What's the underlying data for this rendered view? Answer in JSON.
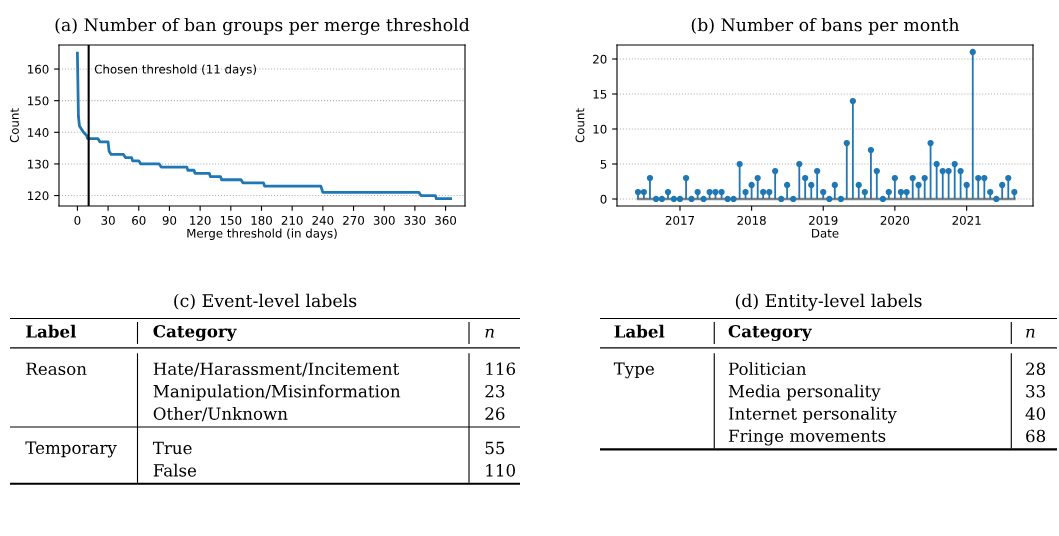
{
  "chart_data": [
    {
      "type": "line",
      "title": "(a) Number of ban groups per merge threshold",
      "xlabel": "Merge threshold (in days)",
      "ylabel": "Count",
      "x": [
        0,
        1,
        2,
        4,
        6,
        9,
        10,
        20,
        22,
        30,
        31,
        33,
        45,
        47,
        53,
        54,
        60,
        62,
        80,
        82,
        107,
        108,
        114,
        115,
        129,
        130,
        140,
        141,
        160,
        162,
        182,
        183,
        238,
        240,
        334,
        336,
        350,
        351,
        365
      ],
      "series": [
        {
          "color": "#1f77b4",
          "values": [
            165,
            145,
            142,
            141,
            140,
            139,
            138,
            138,
            137,
            137,
            134,
            133,
            133,
            132,
            132,
            131,
            131,
            130,
            130,
            129,
            129,
            128,
            128,
            127,
            127,
            126,
            126,
            125,
            125,
            124,
            124,
            123,
            123,
            121,
            121,
            120,
            120,
            119,
            119
          ]
        }
      ],
      "xlim": [
        -18,
        379
      ],
      "ylim": [
        116.7,
        167.6
      ],
      "xticks": [
        0,
        30,
        60,
        90,
        120,
        150,
        180,
        210,
        240,
        270,
        300,
        330,
        360
      ],
      "yticks": [
        120,
        130,
        140,
        150,
        160
      ],
      "ref_lines": [
        {
          "axis": "x",
          "value": 11,
          "label": "Chosen threshold (11 days)",
          "color": "#000000"
        }
      ],
      "grid": "y",
      "marker": "none",
      "line_style": "solid"
    },
    {
      "type": "lollipop",
      "title": "(b) Number of bans per month",
      "xlabel": "Date",
      "ylabel": "Count",
      "x": [
        "2016-06",
        "2016-07",
        "2016-08",
        "2016-09",
        "2016-10",
        "2016-11",
        "2016-12",
        "2017-01",
        "2017-02",
        "2017-03",
        "2017-04",
        "2017-05",
        "2017-06",
        "2017-07",
        "2017-08",
        "2017-09",
        "2017-10",
        "2017-11",
        "2017-12",
        "2018-01",
        "2018-02",
        "2018-03",
        "2018-04",
        "2018-05",
        "2018-06",
        "2018-07",
        "2018-08",
        "2018-09",
        "2018-10",
        "2018-11",
        "2018-12",
        "2019-01",
        "2019-02",
        "2019-03",
        "2019-04",
        "2019-05",
        "2019-06",
        "2019-07",
        "2019-08",
        "2019-09",
        "2019-10",
        "2019-11",
        "2019-12",
        "2020-01",
        "2020-02",
        "2020-03",
        "2020-04",
        "2020-05",
        "2020-06",
        "2020-07",
        "2020-08",
        "2020-09",
        "2020-10",
        "2020-11",
        "2020-12",
        "2021-01",
        "2021-02",
        "2021-03",
        "2021-04",
        "2021-05",
        "2021-06",
        "2021-07",
        "2021-08",
        "2021-09"
      ],
      "series": [
        {
          "color": "#1f77b4",
          "values": [
            1,
            1,
            3,
            0,
            0,
            1,
            0,
            0,
            3,
            0,
            1,
            0,
            1,
            1,
            1,
            0,
            0,
            5,
            1,
            2,
            3,
            1,
            1,
            4,
            0,
            2,
            0,
            5,
            3,
            2,
            4,
            1,
            0,
            2,
            0,
            8,
            14,
            2,
            1,
            7,
            4,
            0,
            1,
            3,
            1,
            1,
            3,
            2,
            3,
            8,
            5,
            4,
            4,
            5,
            4,
            2,
            21,
            3,
            3,
            1,
            0,
            2,
            3,
            1
          ]
        }
      ],
      "xlim": [
        "2016-02-15",
        "2021-12-05"
      ],
      "ylim": [
        -1.0,
        22.0
      ],
      "xticks": [
        {
          "value": "2017-01-01",
          "label": "2017"
        },
        {
          "value": "2018-01-01",
          "label": "2018"
        },
        {
          "value": "2019-01-01",
          "label": "2019"
        },
        {
          "value": "2020-01-01",
          "label": "2020"
        },
        {
          "value": "2021-01-01",
          "label": "2021"
        }
      ],
      "yticks": [
        0,
        5,
        10,
        15,
        20
      ],
      "grid": "y",
      "marker": "circle"
    },
    {
      "type": "other",
      "title": "(c) Event-level labels",
      "categories": [
        "Label",
        "Category",
        "n"
      ],
      "cell_labels": [
        [
          "Reason",
          "Hate/Harassment/Incitement",
          "116"
        ],
        [
          null,
          "Manipulation/Misinformation",
          "23"
        ],
        [
          null,
          "Other/Unknown",
          "26"
        ],
        [
          "Temporary",
          "True",
          "55"
        ],
        [
          null,
          "False",
          "110"
        ]
      ]
    },
    {
      "type": "other",
      "title": "(d) Entity-level labels",
      "categories": [
        "Label",
        "Category",
        "n"
      ],
      "cell_labels": [
        [
          "Type",
          "Politician",
          "28"
        ],
        [
          null,
          "Media personality",
          "33"
        ],
        [
          null,
          "Internet personality",
          "40"
        ],
        [
          null,
          "Fringe movements",
          "68"
        ]
      ]
    }
  ]
}
